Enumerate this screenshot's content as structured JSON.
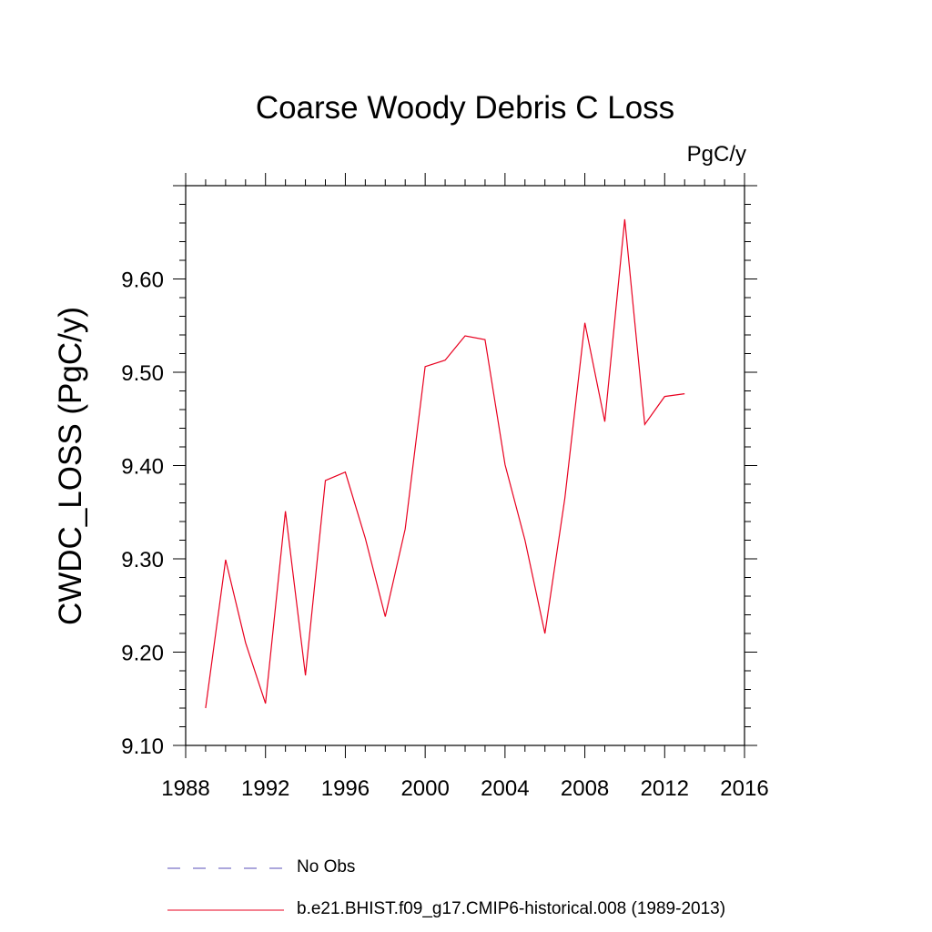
{
  "chart_data": {
    "type": "line",
    "title": "Coarse Woody Debris C Loss",
    "units": "PgC/y",
    "ylabel": "CWDC_LOSS  (PgC/y)",
    "xlabel": "",
    "xlim": [
      1988,
      2016
    ],
    "ylim": [
      9.1,
      9.7
    ],
    "xticks": [
      1988,
      1992,
      1996,
      2000,
      2004,
      2008,
      2012,
      2016
    ],
    "xtick_labels": [
      "1988",
      "1992",
      "1996",
      "2000",
      "2004",
      "2008",
      "2012",
      "2016"
    ],
    "yticks": [
      9.1,
      9.2,
      9.3,
      9.4,
      9.5,
      9.6
    ],
    "ytick_labels": [
      "9.10",
      "9.20",
      "9.30",
      "9.40",
      "9.50",
      "9.60"
    ],
    "grid": false,
    "legend_position": "bottom",
    "series": [
      {
        "name": "b.e21.BHIST.f09_g17.CMIP6-historical.008 (1989-2013)",
        "color": "#e8001f",
        "style": "solid",
        "x": [
          1989,
          1990,
          1991,
          1992,
          1993,
          1994,
          1995,
          1996,
          1997,
          1998,
          1999,
          2000,
          2001,
          2002,
          2003,
          2004,
          2005,
          2006,
          2007,
          2008,
          2009,
          2010,
          2011,
          2012,
          2013
        ],
        "y": [
          9.14,
          9.299,
          9.21,
          9.145,
          9.351,
          9.175,
          9.384,
          9.393,
          9.322,
          9.238,
          9.332,
          9.506,
          9.513,
          9.539,
          9.535,
          9.401,
          9.32,
          9.22,
          9.365,
          9.553,
          9.447,
          9.664,
          9.444,
          9.474,
          9.477
        ]
      }
    ],
    "legend": [
      {
        "label": "No Obs",
        "color": "#5a4fb8",
        "style": "dashed"
      },
      {
        "label": "b.e21.BHIST.f09_g17.CMIP6-historical.008 (1989-2013)",
        "color": "#e8001f",
        "style": "solid"
      }
    ]
  }
}
